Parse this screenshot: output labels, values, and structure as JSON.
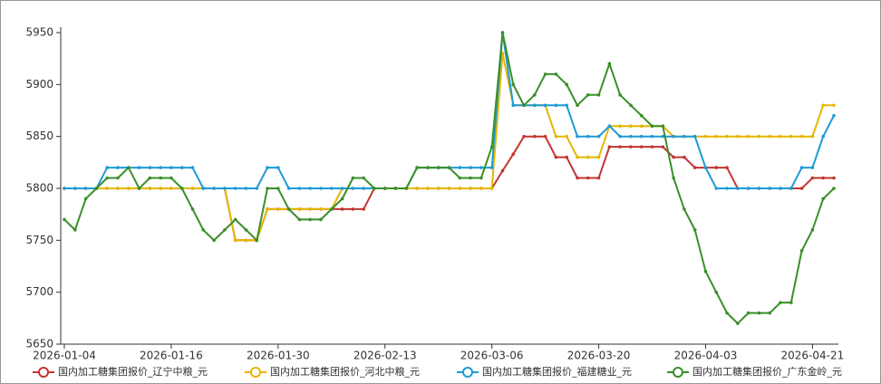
{
  "chart_data": {
    "type": "line",
    "categories": [
      "2026-01-04",
      null,
      null,
      null,
      null,
      null,
      null,
      null,
      null,
      null,
      "2026-01-16",
      null,
      null,
      null,
      null,
      null,
      null,
      null,
      null,
      null,
      "2026-01-30",
      null,
      null,
      null,
      null,
      null,
      null,
      null,
      null,
      null,
      "2026-02-13",
      null,
      null,
      null,
      null,
      null,
      null,
      null,
      null,
      null,
      "2026-03-06",
      null,
      null,
      null,
      null,
      null,
      null,
      null,
      null,
      null,
      "2026-03-20",
      null,
      null,
      null,
      null,
      null,
      null,
      null,
      null,
      null,
      "2026-04-03",
      null,
      null,
      null,
      null,
      null,
      null,
      null,
      null,
      null,
      "2026-04-21",
      null,
      null
    ],
    "ylim": [
      5650,
      5950
    ],
    "yticks": [
      5650,
      5700,
      5750,
      5800,
      5850,
      5900,
      5950
    ],
    "grid": false,
    "series": [
      {
        "name": "国内加工糖集团报价_辽宁中粮_元",
        "color": "#c23531",
        "values": [
          5800,
          5800,
          5800,
          5800,
          5800,
          5800,
          5800,
          5800,
          5800,
          5800,
          5800,
          5800,
          5800,
          5800,
          5800,
          5800,
          5750,
          5750,
          5750,
          5780,
          5780,
          5780,
          5780,
          5780,
          5780,
          5780,
          5780,
          5780,
          5780,
          5800,
          5800,
          5800,
          5800,
          5800,
          5800,
          5800,
          5800,
          5800,
          5800,
          5800,
          5800,
          5817,
          5833,
          5850,
          5850,
          5850,
          5830,
          5830,
          5810,
          5810,
          5810,
          5840,
          5840,
          5840,
          5840,
          5840,
          5840,
          5830,
          5830,
          5820,
          5820,
          5820,
          5820,
          5800,
          5800,
          5800,
          5800,
          5800,
          5800,
          5800,
          5810,
          5810,
          5810
        ]
      },
      {
        "name": "国内加工糖集团报价_河北中粮_元",
        "color": "#e6b600",
        "values": [
          5800,
          5800,
          5800,
          5800,
          5800,
          5800,
          5800,
          5800,
          5800,
          5800,
          5800,
          5800,
          5800,
          5800,
          5800,
          5800,
          5750,
          5750,
          5750,
          5780,
          5780,
          5780,
          5780,
          5780,
          5780,
          5780,
          5800,
          5800,
          5800,
          5800,
          5800,
          5800,
          5800,
          5800,
          5800,
          5800,
          5800,
          5800,
          5800,
          5800,
          5800,
          5930,
          5880,
          5880,
          5880,
          5880,
          5850,
          5850,
          5830,
          5830,
          5830,
          5860,
          5860,
          5860,
          5860,
          5860,
          5860,
          5850,
          5850,
          5850,
          5850,
          5850,
          5850,
          5850,
          5850,
          5850,
          5850,
          5850,
          5850,
          5850,
          5850,
          5880,
          5880
        ]
      },
      {
        "name": "国内加工糖集团报价_福建糖业_元",
        "color": "#1e9ad6",
        "values": [
          5800,
          5800,
          5800,
          5800,
          5820,
          5820,
          5820,
          5820,
          5820,
          5820,
          5820,
          5820,
          5820,
          5800,
          5800,
          5800,
          5800,
          5800,
          5800,
          5820,
          5820,
          5800,
          5800,
          5800,
          5800,
          5800,
          5800,
          5800,
          5800,
          5800,
          5800,
          5800,
          5800,
          5820,
          5820,
          5820,
          5820,
          5820,
          5820,
          5820,
          5820,
          5950,
          5880,
          5880,
          5880,
          5880,
          5880,
          5880,
          5850,
          5850,
          5850,
          5860,
          5850,
          5850,
          5850,
          5850,
          5850,
          5850,
          5850,
          5850,
          5820,
          5800,
          5800,
          5800,
          5800,
          5800,
          5800,
          5800,
          5800,
          5820,
          5820,
          5850,
          5870
        ]
      },
      {
        "name": "国内加工糖集团报价_广东金岭_元",
        "color": "#3a8f2a",
        "values": [
          5770,
          5760,
          5790,
          5800,
          5810,
          5810,
          5820,
          5800,
          5810,
          5810,
          5810,
          5800,
          5780,
          5760,
          5750,
          5760,
          5770,
          5760,
          5750,
          5800,
          5800,
          5780,
          5770,
          5770,
          5770,
          5780,
          5790,
          5810,
          5810,
          5800,
          5800,
          5800,
          5800,
          5820,
          5820,
          5820,
          5820,
          5810,
          5810,
          5810,
          5840,
          5950,
          5900,
          5880,
          5890,
          5910,
          5910,
          5900,
          5880,
          5890,
          5890,
          5920,
          5890,
          5880,
          5870,
          5860,
          5860,
          5810,
          5780,
          5760,
          5720,
          5700,
          5680,
          5670,
          5680,
          5680,
          5680,
          5690,
          5690,
          5740,
          5760,
          5790,
          5800
        ]
      }
    ]
  }
}
